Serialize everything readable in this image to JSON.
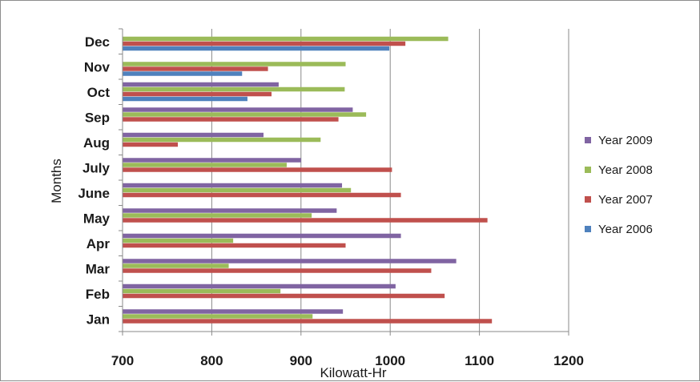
{
  "chart_data": {
    "type": "bar",
    "orientation": "horizontal",
    "categories": [
      "Jan",
      "Feb",
      "Mar",
      "Apr",
      "May",
      "June",
      "July",
      "Aug",
      "Sep",
      "Oct",
      "Nov",
      "Dec"
    ],
    "series": [
      {
        "name": "Year 2006",
        "color": "#4f81bd",
        "values": [
          null,
          null,
          null,
          null,
          null,
          null,
          null,
          null,
          null,
          840,
          834,
          999
        ]
      },
      {
        "name": "Year 2007",
        "color": "#c0504d",
        "values": [
          1114,
          1061,
          1046,
          950,
          1109,
          1012,
          1002,
          762,
          942,
          867,
          863,
          1017
        ]
      },
      {
        "name": "Year 2008",
        "color": "#9bbb59",
        "values": [
          913,
          877,
          819,
          824,
          912,
          956,
          884,
          922,
          973,
          949,
          950,
          1065
        ]
      },
      {
        "name": "Year 2009",
        "color": "#8064a2",
        "values": [
          947,
          1006,
          1074,
          1012,
          940,
          946,
          900,
          858,
          958,
          875,
          null,
          null
        ]
      }
    ],
    "xlabel": "Kilowatt-Hr",
    "ylabel": "Months",
    "xlim": [
      700,
      1200
    ],
    "xticks": [
      700,
      800,
      900,
      1000,
      1100,
      1200
    ],
    "grid": "vertical major gridlines",
    "legend_position": "right",
    "legend_order": [
      "Year 2009",
      "Year 2008",
      "Year 2007",
      "Year 2006"
    ]
  }
}
